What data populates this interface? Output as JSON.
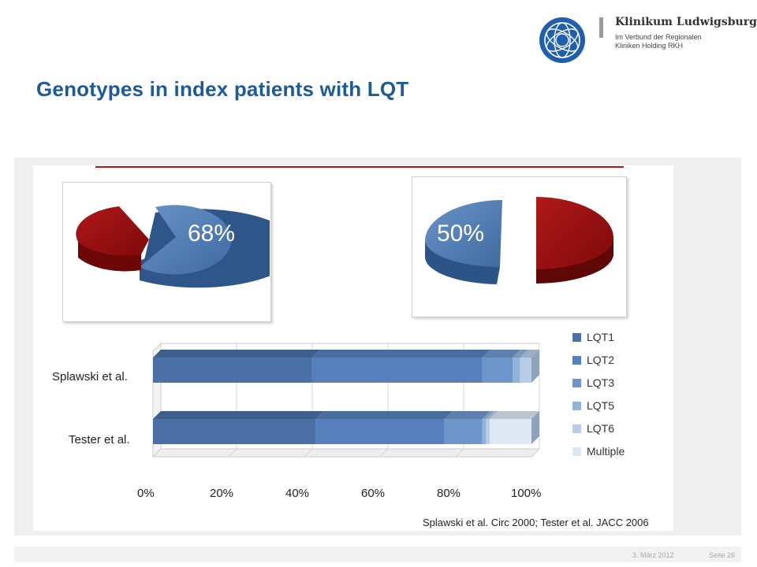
{
  "header": {
    "logo_name": "Klinikum Ludwigsburg",
    "logo_sub_1": "Im Verbund der Regionalen",
    "logo_sub_2": "Kliniken Holding RKH"
  },
  "title": "Genotypes in index patients with LQT",
  "colors": {
    "title": "#1d5a9a",
    "pie_blue": "#4f79b0",
    "pie_red": "#9a1010",
    "rule": "#b31b1b"
  },
  "chart_data": [
    {
      "type": "pie",
      "labels": [
        "68%",
        ""
      ],
      "values": [
        68,
        32
      ],
      "colors": [
        "#4f79b0",
        "#9a1010"
      ]
    },
    {
      "type": "pie",
      "labels": [
        "50%",
        ""
      ],
      "values": [
        50,
        50
      ],
      "colors": [
        "#4f79b0",
        "#9a1010"
      ]
    },
    {
      "type": "bar",
      "orientation": "horizontal",
      "stacked": true,
      "categories": [
        "Splawski et al.",
        "Tester et al."
      ],
      "series": [
        {
          "name": "LQT1",
          "values": [
            42,
            43
          ],
          "color": "#4a70a6"
        },
        {
          "name": "LQT2",
          "values": [
            45,
            34
          ],
          "color": "#5580bb"
        },
        {
          "name": "LQT3",
          "values": [
            8,
            10
          ],
          "color": "#6d97cb"
        },
        {
          "name": "LQT5",
          "values": [
            2,
            1
          ],
          "color": "#93b4da"
        },
        {
          "name": "LQT6",
          "values": [
            3,
            1
          ],
          "color": "#b7cce6"
        },
        {
          "name": "Multiple",
          "values": [
            0,
            11
          ],
          "color": "#dfe7f2"
        }
      ],
      "xticks": [
        "0%",
        "20%",
        "40%",
        "60%",
        "80%",
        "100%"
      ],
      "xlim": [
        0,
        100
      ],
      "grid": true,
      "legend": "right"
    }
  ],
  "citation": "Splawski et al. Circ 2000; Tester et al. JACC 2006",
  "footer": {
    "date": "3. März 2012",
    "page": "Seite 26"
  }
}
